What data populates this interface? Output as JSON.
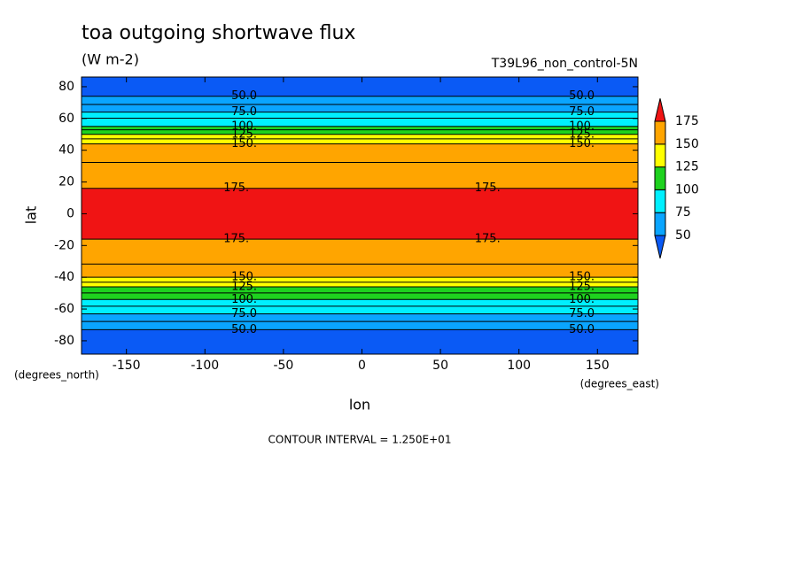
{
  "chart_data": {
    "type": "contour",
    "title": "toa outgoing shortwave flux",
    "subtitle": "(W m-2)",
    "dataset": "T39L96_non_control-5N",
    "ylabel": "lat",
    "xlabel": "lon",
    "ylabel_units": "(degrees_north)",
    "xlabel_units": "(degrees_east)",
    "contour_interval": 12.5,
    "contour_interval_label": "CONTOUR INTERVAL = 1.250E+01",
    "xlim": [
      -178.6,
      175.8
    ],
    "xticks": [
      -150,
      -100,
      -50,
      0,
      50,
      100,
      150
    ],
    "ylim": [
      -88.4,
      86.1
    ],
    "yticks": [
      -80,
      -60,
      -40,
      -20,
      0,
      20,
      40,
      60,
      80
    ],
    "lat": [
      -90,
      -80,
      -73,
      -68,
      -63,
      -58,
      -54,
      -50,
      -46,
      -43,
      -40,
      -30,
      -16,
      -5,
      5,
      16,
      30,
      44,
      47,
      50,
      53,
      55,
      60,
      64,
      69,
      74,
      80,
      90
    ],
    "flux": [
      35,
      42,
      50,
      62,
      75,
      88,
      100,
      112,
      125,
      138,
      150,
      165,
      175,
      185,
      185,
      175,
      165,
      150,
      138,
      125,
      112,
      100,
      88,
      75,
      62,
      50,
      42,
      38
    ],
    "levels": [
      50,
      75,
      100,
      125,
      150,
      175
    ],
    "colors": [
      "#0a5af5",
      "#0aa5ff",
      "#00f0ff",
      "#1ed21e",
      "#ffff00",
      "#ffa500",
      "#f01414"
    ],
    "contour_labels": [
      {
        "value": 50,
        "label": "50.0"
      },
      {
        "value": 75,
        "label": "75.0"
      },
      {
        "value": 100,
        "label": "100."
      },
      {
        "value": 125,
        "label": "125."
      },
      {
        "value": 150,
        "label": "150."
      },
      {
        "value": 175,
        "label": "175."
      }
    ]
  }
}
